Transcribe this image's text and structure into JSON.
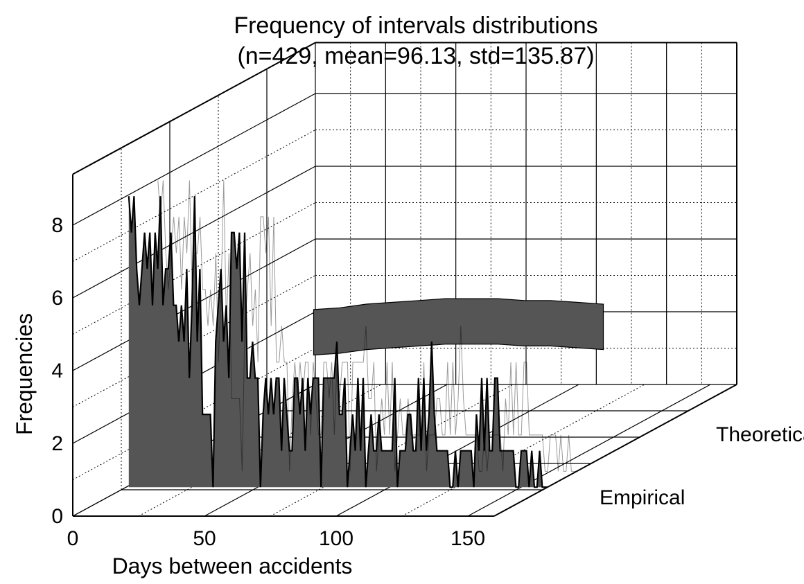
{
  "chart_data": {
    "type": "area",
    "title": "Frequency of intervals distributions",
    "subtitle": "(n=429, mean=96.13, std=135.87)",
    "xlabel": "Days between accidents",
    "ylabel": "Frequencies",
    "xlim": [
      0,
      160
    ],
    "ylim": [
      0,
      8
    ],
    "x_ticks": [
      "0",
      "50",
      "100",
      "150"
    ],
    "y_ticks": [
      "0",
      "2",
      "4",
      "6",
      "8"
    ],
    "grid": true,
    "projection": "3d",
    "series": [
      {
        "name": "Empirical",
        "color": "#555555",
        "x": [
          1,
          2,
          3,
          4,
          5,
          6,
          7,
          8,
          9,
          10,
          11,
          12,
          13,
          14,
          15,
          16,
          17,
          18,
          19,
          20,
          21,
          22,
          23,
          24,
          25,
          26,
          27,
          28,
          29,
          30,
          31,
          32,
          33,
          34,
          35,
          36,
          37,
          38,
          39,
          40,
          41,
          42,
          43,
          44,
          45,
          46,
          47,
          48,
          49,
          50,
          51,
          52,
          53,
          54,
          55,
          56,
          57,
          58,
          59,
          60,
          61,
          62,
          63,
          64,
          65,
          66,
          67,
          68,
          69,
          70,
          71,
          72,
          73,
          74,
          75,
          76,
          77,
          78,
          79,
          80,
          81,
          82,
          83,
          84,
          85,
          86,
          87,
          88,
          89,
          90,
          91,
          92,
          93,
          94,
          95,
          96,
          97,
          98,
          99,
          100,
          101,
          102,
          103,
          104,
          105,
          106,
          107,
          108,
          109,
          110,
          111,
          112,
          113,
          114,
          115,
          116,
          117,
          118,
          119,
          120,
          121,
          122,
          123,
          124,
          125,
          126,
          127,
          128,
          129,
          130,
          131,
          132,
          133,
          134,
          135,
          136,
          137,
          138,
          139,
          140,
          141,
          142,
          143,
          144,
          145,
          146,
          147,
          148,
          149,
          150,
          151,
          152,
          153,
          154,
          155,
          156,
          157,
          158,
          159,
          160
        ],
        "values": [
          8,
          7,
          8,
          6,
          5,
          6,
          7,
          6,
          7,
          5,
          7,
          6,
          8,
          5,
          6,
          6,
          7,
          5,
          5,
          4,
          5,
          4,
          6,
          3,
          5,
          8,
          4,
          6,
          2,
          2,
          2,
          2,
          0,
          4,
          5,
          6,
          4,
          5,
          3,
          7,
          7,
          6,
          7,
          4,
          7,
          3,
          3,
          4,
          3,
          3,
          0,
          2,
          3,
          2,
          3,
          2,
          3,
          3,
          1,
          3,
          2,
          1,
          1,
          3,
          3,
          2,
          3,
          1,
          3,
          2,
          3,
          3,
          3,
          0,
          3,
          3,
          3,
          3,
          3,
          4,
          2,
          2,
          3,
          0,
          1,
          2,
          1,
          3,
          1,
          3,
          0,
          1,
          2,
          1,
          1,
          2,
          1,
          1,
          1,
          1,
          1,
          3,
          0,
          1,
          1,
          1,
          2,
          2,
          1,
          1,
          3,
          1,
          3,
          1,
          2,
          4,
          2,
          1,
          1,
          1,
          1,
          1,
          0,
          0,
          1,
          0,
          1,
          1,
          1,
          1,
          1,
          0,
          2,
          1,
          3,
          1,
          3,
          1,
          1,
          3,
          3,
          1,
          1,
          1,
          1,
          1,
          1,
          0,
          0,
          1,
          1,
          1,
          0,
          1,
          0,
          0,
          1,
          0,
          0,
          0
        ]
      },
      {
        "name": "Theoretical",
        "color": "#555555",
        "x": [
          0,
          10,
          20,
          30,
          40,
          50,
          60,
          70,
          80,
          90,
          100,
          110,
          120,
          130,
          140,
          150,
          160
        ],
        "values": [
          3.9,
          3.9,
          3.9,
          3.95,
          4.0,
          4.05,
          4.1,
          4.2,
          4.25,
          4.3,
          4.35,
          4.35,
          4.35,
          4.3,
          4.3,
          4.25,
          4.2
        ]
      }
    ]
  }
}
